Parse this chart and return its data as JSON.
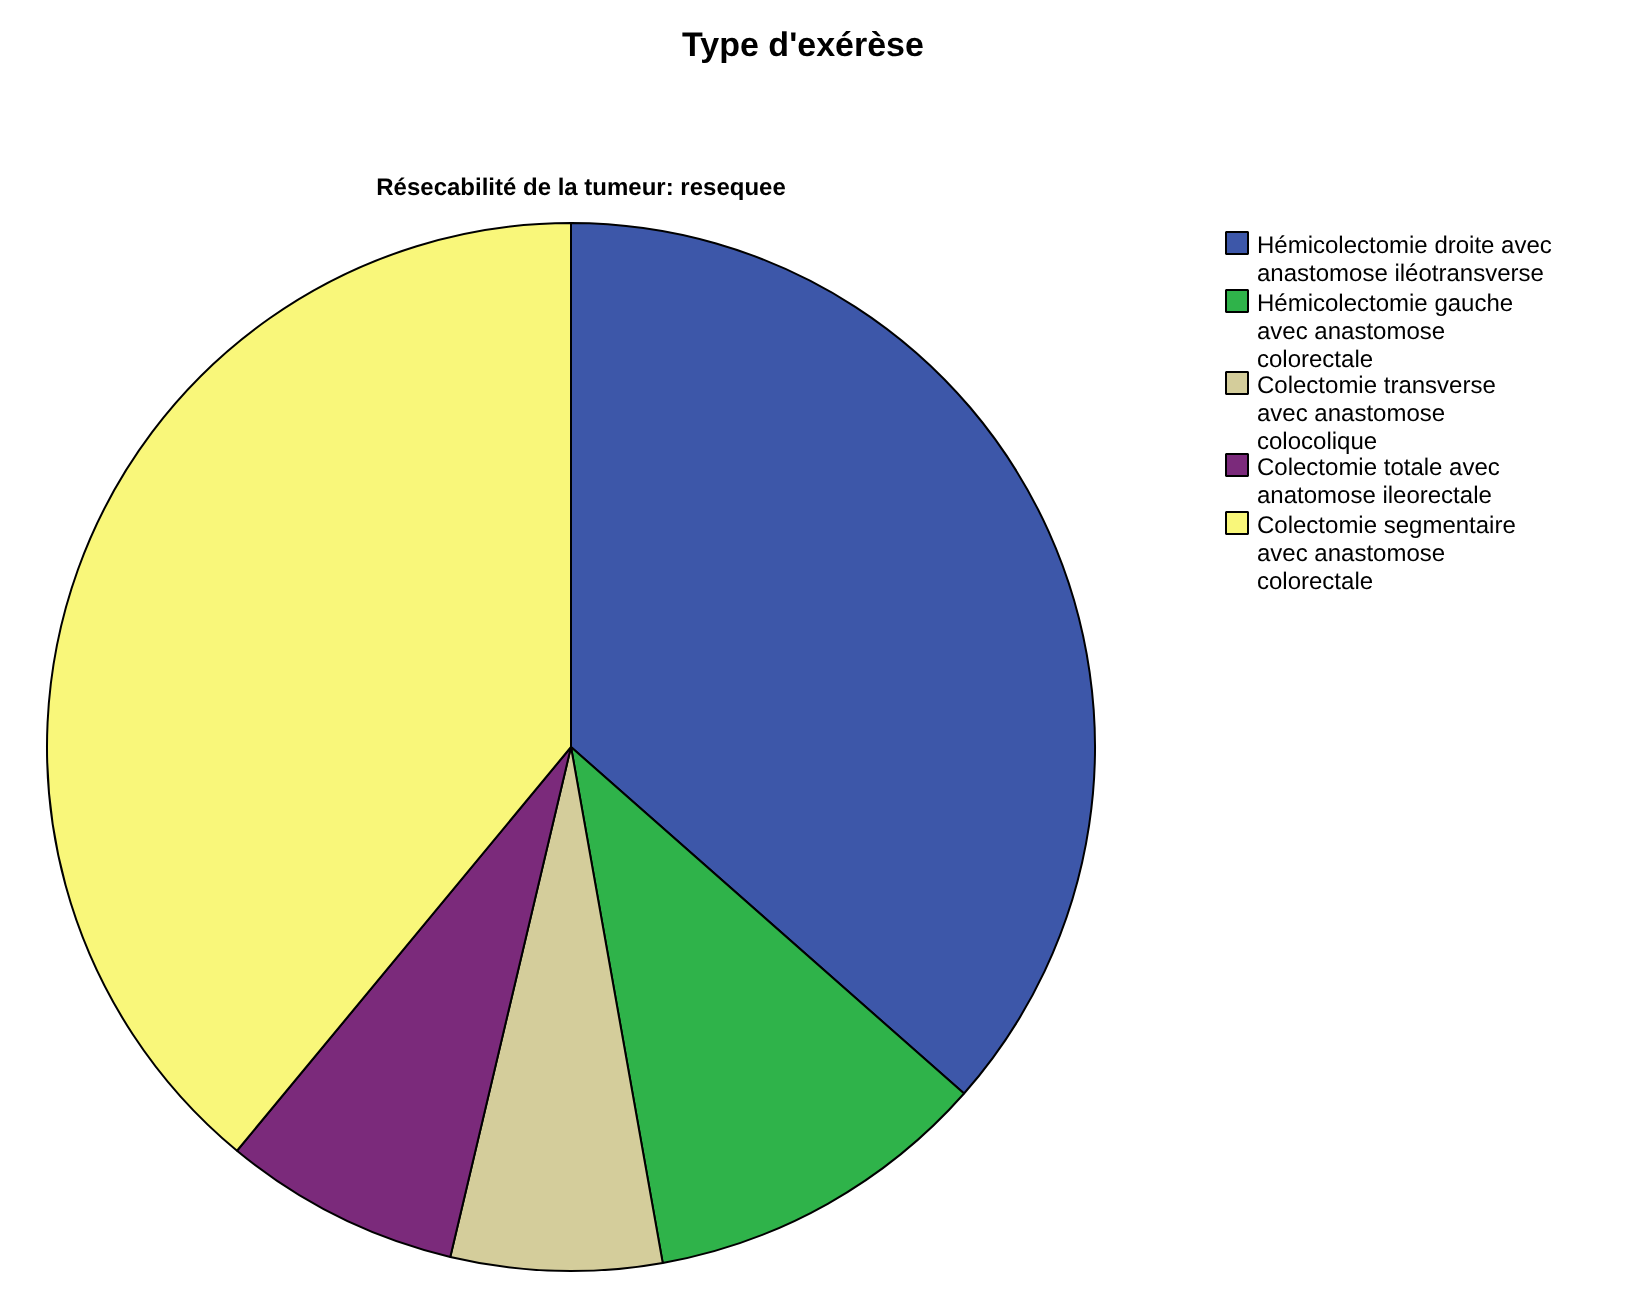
{
  "chart_data": {
    "type": "pie",
    "title": "Type d'exérèse",
    "subtitle": "Résecabilité de la tumeur: resequee",
    "categories": [
      "Hémicolectomie droite avec\nanastomose iléotransverse",
      "Hémicolectomie gauche\navec anastomose\ncolorectale",
      "Colectomie transverse\navec anastomose\ncolocolique",
      "Colectomie totale avec\nanatomose ileorectale",
      "Colectomie segmentaire\navec anastomose\ncolorectale"
    ],
    "values": [
      36.5,
      10.7,
      6.5,
      7.3,
      39.0
    ],
    "colors": [
      "#3d57a9",
      "#2fb34a",
      "#d4cd9b",
      "#7b2a7b",
      "#f9f77a"
    ],
    "legend": "right"
  }
}
